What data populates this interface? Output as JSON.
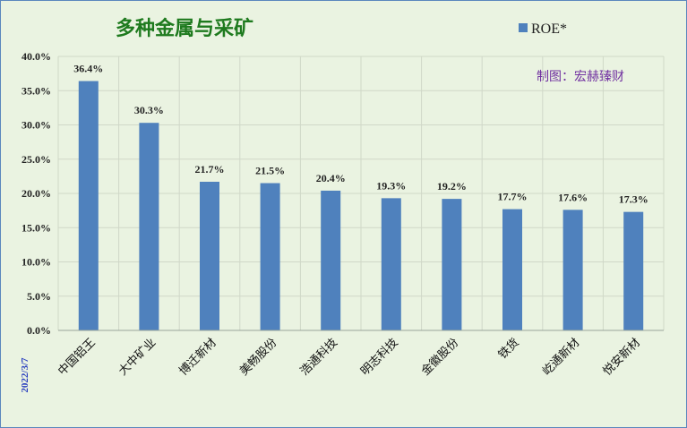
{
  "chart_data": {
    "type": "bar",
    "title": "多种金属与采矿",
    "categories": [
      "中国铝王",
      "大中矿业",
      "博迁新材",
      "美畅股份",
      "浩通科技",
      "明志科技",
      "金徽股份",
      "铁货",
      "屹通新材",
      "悦安新材"
    ],
    "series": [
      {
        "name": "ROE*",
        "values": [
          36.4,
          30.3,
          21.7,
          21.5,
          20.4,
          19.3,
          19.2,
          17.7,
          17.6,
          17.3
        ],
        "labels": [
          "36.4%",
          "30.3%",
          "21.7%",
          "21.5%",
          "20.4%",
          "19.3%",
          "19.2%",
          "17.7%",
          "17.6%",
          "17.3%"
        ]
      }
    ],
    "ylim": [
      0,
      40
    ],
    "yticks": [
      "0.0%",
      "5.0%",
      "10.0%",
      "15.0%",
      "20.0%",
      "25.0%",
      "30.0%",
      "35.0%",
      "40.0%"
    ],
    "ytick_values": [
      0,
      5,
      10,
      15,
      20,
      25,
      30,
      35,
      40
    ],
    "grid": true,
    "legend_position": "top-right",
    "credit": "制图：宏赫臻财",
    "date": "2022/3/7"
  },
  "colors": {
    "bar": "#4f81bd",
    "background": "#eaf3e1",
    "grid": "#d0d8c8",
    "title": "#1e7a1e",
    "credit": "#7030a0",
    "date": "#2a3fbf"
  }
}
